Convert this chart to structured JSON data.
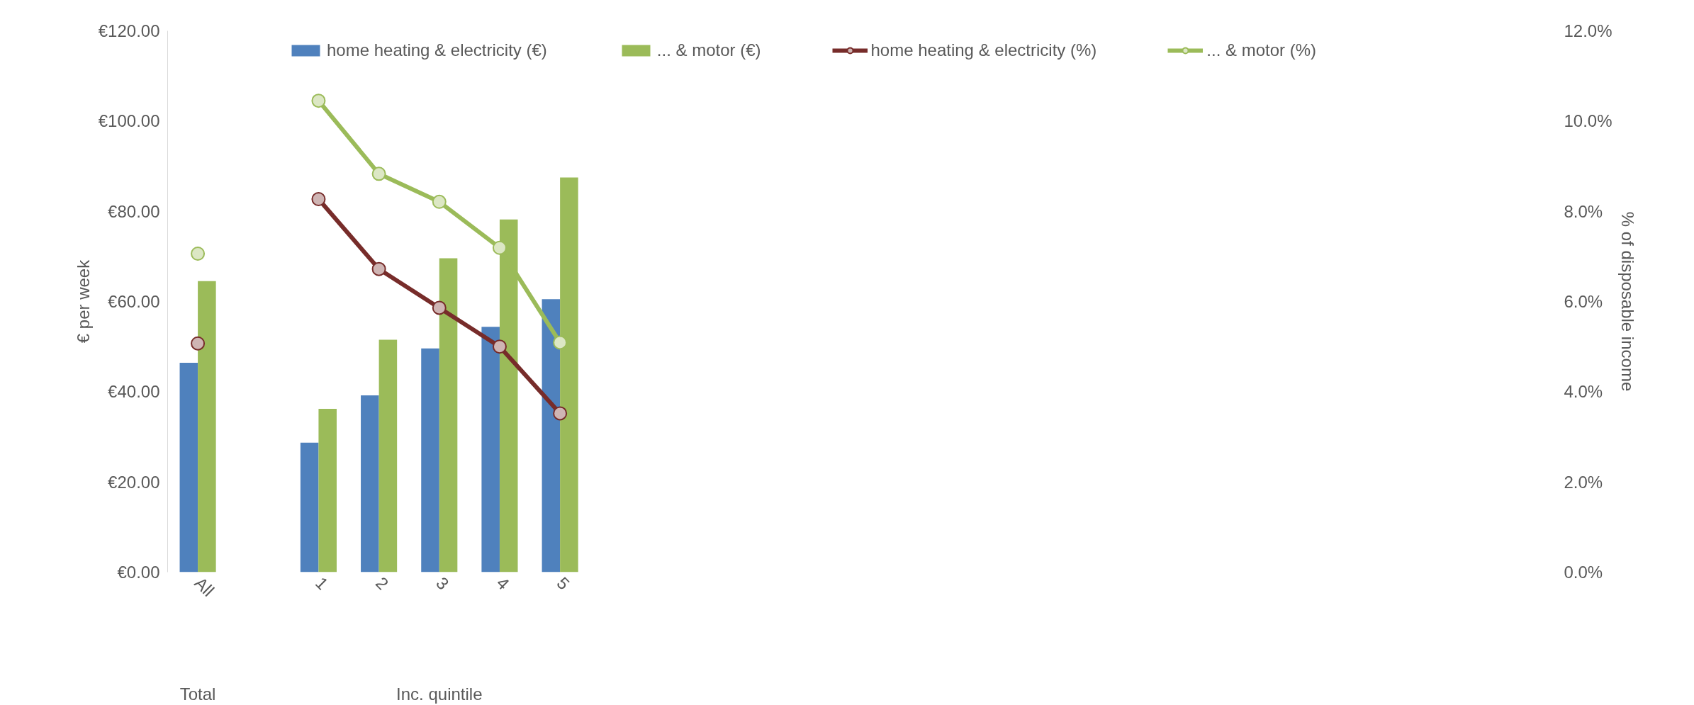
{
  "chart_data": {
    "type": "bar",
    "ylabel": "€ per week",
    "y2label": "% of disposable income",
    "categories": [
      "All",
      null,
      "1",
      "2",
      "3",
      "4",
      "5",
      null,
      null,
      null,
      null,
      null,
      null,
      null,
      null,
      null,
      null,
      null,
      null,
      null,
      null,
      null,
      null
    ],
    "series": [
      {
        "name": "home heating & electricity (€)",
        "color": "#4f81bd",
        "values": [
          46.4,
          null,
          28.7,
          39.2,
          49.6,
          54.4,
          60.5,
          null,
          null,
          null,
          null,
          null,
          null,
          null,
          null,
          null,
          null,
          null,
          null,
          null,
          null,
          null,
          null
        ]
      },
      {
        "name": "... & motor (€)",
        "color": "#9bbb59",
        "values": [
          64.5,
          null,
          36.2,
          51.5,
          69.6,
          78.2,
          87.5,
          null,
          null,
          null,
          null,
          null,
          null,
          null,
          null,
          null,
          null,
          null,
          null,
          null,
          null,
          null,
          null
        ]
      },
      {
        "name": "home heating & electricity (%)",
        "type": "line",
        "axis": "y2",
        "color": "#772c2a",
        "values": [
          5.07,
          null,
          8.27,
          6.72,
          5.86,
          5.0,
          3.52,
          null,
          null,
          null,
          null,
          null,
          null,
          null,
          null,
          null,
          null,
          null,
          null,
          null,
          null,
          null,
          null
        ]
      },
      {
        "name": "... & motor (%)",
        "type": "line",
        "axis": "y2",
        "color": "#9bbb59",
        "values": [
          7.06,
          null,
          10.45,
          8.83,
          8.21,
          7.19,
          5.09,
          null,
          null,
          null,
          null,
          null,
          null,
          null,
          null,
          null,
          null,
          null,
          null,
          null,
          null,
          null,
          null
        ]
      }
    ],
    "ylim": [
      0,
      120
    ],
    "yticks": [
      {
        "value": 0,
        "label": "€0.00"
      },
      {
        "value": 20,
        "label": "€20.00"
      },
      {
        "value": 40,
        "label": "€40.00"
      },
      {
        "value": 60,
        "label": "€60.00"
      },
      {
        "value": 80,
        "label": "€80.00"
      },
      {
        "value": 100,
        "label": "€100.00"
      },
      {
        "value": 120,
        "label": "€120.00"
      }
    ],
    "y2lim": [
      0,
      12
    ],
    "y2ticks": [
      {
        "value": 0,
        "label": "0.0%"
      },
      {
        "value": 2,
        "label": "2.0%"
      },
      {
        "value": 4,
        "label": "4.0%"
      },
      {
        "value": 6,
        "label": "6.0%"
      },
      {
        "value": 8,
        "label": "8.0%"
      },
      {
        "value": 10,
        "label": "10.0%"
      },
      {
        "value": 12,
        "label": "12.0%"
      }
    ],
    "annotations": [
      "Total",
      "Inc. quintile"
    ],
    "marker": "circle",
    "grid": false,
    "legend": "top"
  }
}
